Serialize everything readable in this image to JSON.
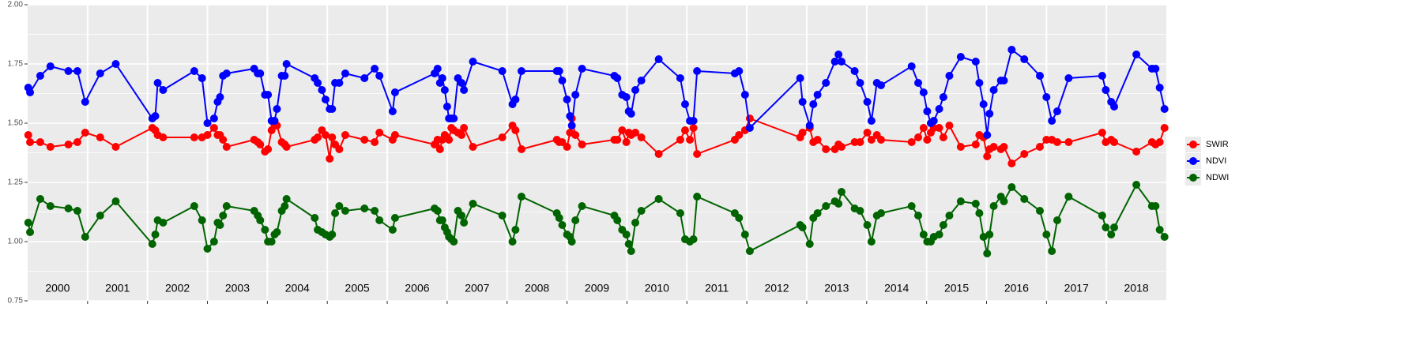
{
  "chart_data": {
    "type": "line",
    "x": [
      2000.01,
      2000.04,
      2000.21,
      2000.38,
      2000.68,
      2000.83,
      2000.96,
      2001.21,
      2001.47,
      2002.08,
      2002.13,
      2002.17,
      2002.26,
      2002.78,
      2002.91,
      2003.0,
      2003.11,
      2003.17,
      2003.21,
      2003.26,
      2003.32,
      2003.78,
      2003.84,
      2003.88,
      2003.96,
      2004.01,
      2004.07,
      2004.12,
      2004.16,
      2004.24,
      2004.29,
      2004.32,
      2004.79,
      2004.84,
      2004.91,
      2004.97,
      2005.04,
      2005.08,
      2005.13,
      2005.2,
      2005.3,
      2005.62,
      2005.79,
      2005.87,
      2006.09,
      2006.13,
      2006.79,
      2006.84,
      2006.88,
      2006.92,
      2006.96,
      2007.0,
      2007.03,
      2007.07,
      2007.11,
      2007.18,
      2007.24,
      2007.28,
      2007.43,
      2007.92,
      2008.09,
      2008.14,
      2008.24,
      2008.83,
      2008.87,
      2008.92,
      2009.0,
      2009.05,
      2009.08,
      2009.14,
      2009.25,
      2009.79,
      2009.84,
      2009.92,
      2009.99,
      2010.03,
      2010.07,
      2010.14,
      2010.24,
      2010.53,
      2010.89,
      2010.97,
      2011.05,
      2011.11,
      2011.17,
      2011.8,
      2011.87,
      2011.97,
      2012.05,
      2012.89,
      2012.93,
      2013.05,
      2013.11,
      2013.18,
      2013.32,
      2013.47,
      2013.53,
      2013.58,
      2013.8,
      2013.89,
      2014.01,
      2014.08,
      2014.17,
      2014.24,
      2014.75,
      2014.86,
      2014.95,
      2015.01,
      2015.07,
      2015.12,
      2015.21,
      2015.28,
      2015.38,
      2015.57,
      2015.82,
      2015.88,
      2015.95,
      2016.01,
      2016.05,
      2016.12,
      2016.24,
      2016.29,
      2016.42,
      2016.63,
      2016.89,
      2017.0,
      2017.09,
      2017.18,
      2017.37,
      2017.93,
      2017.99,
      2018.08,
      2018.13,
      2018.5,
      2018.76,
      2018.82,
      2018.89,
      2018.97
    ],
    "series": [
      {
        "name": "SWIR",
        "color": "#ff0000",
        "values": [
          1.45,
          1.42,
          1.42,
          1.4,
          1.41,
          1.42,
          1.46,
          1.44,
          1.4,
          1.48,
          1.47,
          1.45,
          1.44,
          1.44,
          1.44,
          1.45,
          1.48,
          1.45,
          1.45,
          1.43,
          1.4,
          1.43,
          1.42,
          1.41,
          1.38,
          1.39,
          1.47,
          1.49,
          1.49,
          1.42,
          1.41,
          1.4,
          1.43,
          1.44,
          1.47,
          1.45,
          1.35,
          1.44,
          1.41,
          1.39,
          1.45,
          1.43,
          1.42,
          1.46,
          1.43,
          1.45,
          1.41,
          1.43,
          1.39,
          1.43,
          1.45,
          1.44,
          1.43,
          1.48,
          1.47,
          1.46,
          1.45,
          1.48,
          1.4,
          1.44,
          1.49,
          1.47,
          1.39,
          1.43,
          1.42,
          1.42,
          1.4,
          1.46,
          1.52,
          1.45,
          1.41,
          1.43,
          1.43,
          1.47,
          1.42,
          1.46,
          1.45,
          1.46,
          1.44,
          1.37,
          1.43,
          1.47,
          1.43,
          1.48,
          1.37,
          1.43,
          1.45,
          1.47,
          1.52,
          1.44,
          1.46,
          1.48,
          1.42,
          1.43,
          1.39,
          1.39,
          1.41,
          1.4,
          1.42,
          1.42,
          1.46,
          1.43,
          1.45,
          1.43,
          1.42,
          1.44,
          1.48,
          1.43,
          1.46,
          1.48,
          1.48,
          1.44,
          1.49,
          1.4,
          1.41,
          1.45,
          1.44,
          1.36,
          1.39,
          1.4,
          1.39,
          1.4,
          1.33,
          1.37,
          1.4,
          1.43,
          1.43,
          1.42,
          1.42,
          1.46,
          1.42,
          1.43,
          1.42,
          1.38,
          1.42,
          1.41,
          1.42,
          1.48
        ]
      },
      {
        "name": "NDVI",
        "color": "#0000ff",
        "values": [
          1.65,
          1.63,
          1.7,
          1.74,
          1.72,
          1.72,
          1.59,
          1.71,
          1.75,
          1.52,
          1.53,
          1.67,
          1.64,
          1.72,
          1.69,
          1.5,
          1.52,
          1.59,
          1.61,
          1.7,
          1.71,
          1.73,
          1.71,
          1.71,
          1.62,
          1.62,
          1.51,
          1.51,
          1.56,
          1.7,
          1.7,
          1.75,
          1.69,
          1.67,
          1.64,
          1.6,
          1.56,
          1.56,
          1.67,
          1.67,
          1.71,
          1.69,
          1.73,
          1.7,
          1.55,
          1.63,
          1.71,
          1.73,
          1.67,
          1.69,
          1.64,
          1.57,
          1.52,
          1.52,
          1.52,
          1.69,
          1.67,
          1.64,
          1.76,
          1.72,
          1.58,
          1.6,
          1.72,
          1.72,
          1.72,
          1.68,
          1.6,
          1.53,
          1.49,
          1.62,
          1.73,
          1.7,
          1.69,
          1.62,
          1.61,
          1.55,
          1.54,
          1.64,
          1.68,
          1.77,
          1.69,
          1.58,
          1.51,
          1.51,
          1.72,
          1.71,
          1.72,
          1.62,
          1.48,
          1.69,
          1.59,
          1.49,
          1.58,
          1.62,
          1.67,
          1.76,
          1.79,
          1.76,
          1.72,
          1.67,
          1.59,
          1.51,
          1.67,
          1.66,
          1.74,
          1.67,
          1.63,
          1.55,
          1.5,
          1.51,
          1.56,
          1.61,
          1.7,
          1.78,
          1.76,
          1.67,
          1.58,
          1.45,
          1.54,
          1.64,
          1.68,
          1.68,
          1.81,
          1.77,
          1.7,
          1.61,
          1.51,
          1.55,
          1.69,
          1.7,
          1.64,
          1.59,
          1.57,
          1.79,
          1.73,
          1.73,
          1.65,
          1.56
        ]
      },
      {
        "name": "NDWI",
        "color": "#006400",
        "values": [
          1.08,
          1.04,
          1.18,
          1.15,
          1.14,
          1.13,
          1.02,
          1.11,
          1.17,
          0.99,
          1.03,
          1.09,
          1.08,
          1.15,
          1.09,
          0.97,
          1.0,
          1.08,
          1.07,
          1.11,
          1.15,
          1.13,
          1.11,
          1.09,
          1.05,
          1.0,
          1.0,
          1.03,
          1.04,
          1.13,
          1.15,
          1.18,
          1.1,
          1.05,
          1.04,
          1.03,
          1.02,
          1.03,
          1.12,
          1.15,
          1.13,
          1.14,
          1.13,
          1.09,
          1.05,
          1.1,
          1.14,
          1.13,
          1.09,
          1.09,
          1.06,
          1.04,
          1.02,
          1.01,
          1.0,
          1.13,
          1.11,
          1.08,
          1.16,
          1.11,
          1.0,
          1.05,
          1.19,
          1.12,
          1.1,
          1.07,
          1.03,
          1.02,
          1.0,
          1.09,
          1.15,
          1.11,
          1.09,
          1.05,
          1.03,
          0.99,
          0.96,
          1.08,
          1.13,
          1.18,
          1.12,
          1.01,
          1.0,
          1.01,
          1.19,
          1.12,
          1.1,
          1.03,
          0.96,
          1.07,
          1.06,
          0.99,
          1.1,
          1.12,
          1.15,
          1.17,
          1.16,
          1.21,
          1.14,
          1.13,
          1.07,
          1.0,
          1.11,
          1.12,
          1.15,
          1.11,
          1.03,
          1.0,
          1.0,
          1.02,
          1.03,
          1.07,
          1.11,
          1.17,
          1.16,
          1.12,
          1.02,
          0.95,
          1.03,
          1.15,
          1.19,
          1.17,
          1.23,
          1.18,
          1.13,
          1.03,
          0.96,
          1.09,
          1.19,
          1.11,
          1.06,
          1.03,
          1.06,
          1.24,
          1.15,
          1.15,
          1.05,
          1.02
        ]
      }
    ],
    "year_labels": [
      "2000",
      "2001",
      "2002",
      "2003",
      "2004",
      "2005",
      "2006",
      "2007",
      "2008",
      "2009",
      "2010",
      "2011",
      "2012",
      "2013",
      "2014",
      "2015",
      "2016",
      "2017",
      "2018"
    ],
    "xlim": [
      2000,
      2019
    ],
    "xticks": [
      2001,
      2002,
      2003,
      2004,
      2005,
      2006,
      2007,
      2008,
      2009,
      2010,
      2011,
      2012,
      2013,
      2014,
      2015,
      2016,
      2017,
      2018
    ],
    "ylim": [
      0.75,
      2.0
    ],
    "yticks": [
      {
        "value": 0.75,
        "label": "0.75"
      },
      {
        "value": 1.0,
        "label": "1.00"
      },
      {
        "value": 1.25,
        "label": "1.25"
      },
      {
        "value": 1.5,
        "label": "1.50"
      },
      {
        "value": 1.75,
        "label": "1.75"
      },
      {
        "value": 2.0,
        "label": "2.00"
      }
    ],
    "grid": true,
    "legend": "right"
  }
}
